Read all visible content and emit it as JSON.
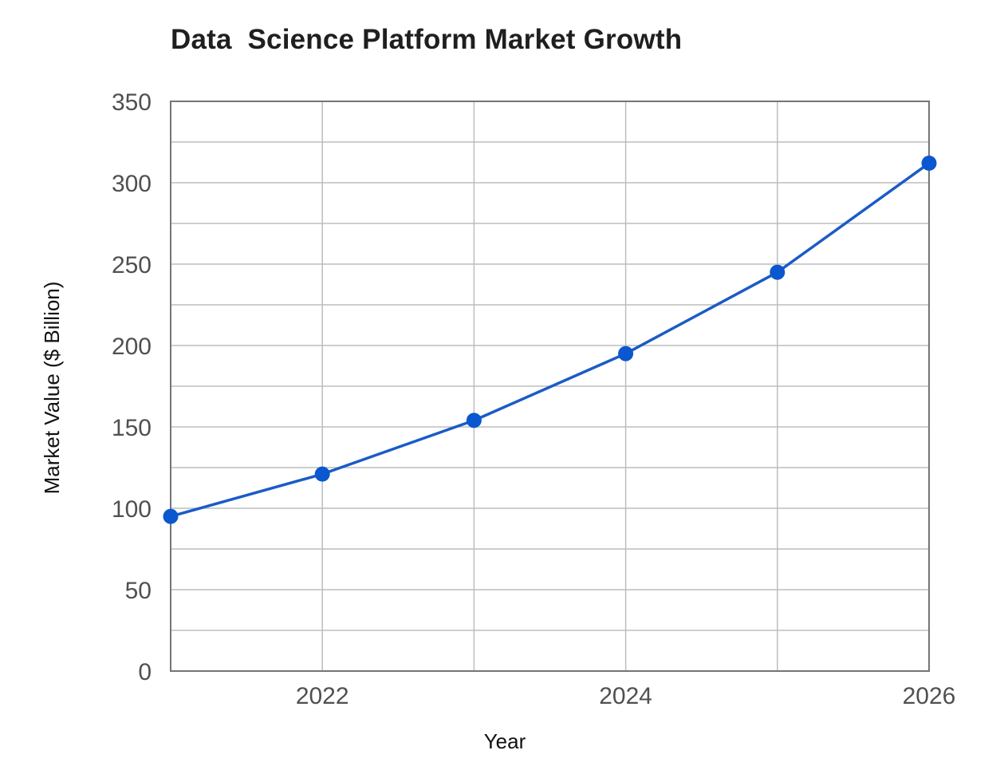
{
  "chart_data": {
    "type": "line",
    "title": "Data  Science Platform Market Growth",
    "xlabel": "Year",
    "ylabel": "Market Value ($ Billion)",
    "x": [
      2021,
      2022,
      2023,
      2024,
      2025,
      2026
    ],
    "series": [
      {
        "name": "Market Value",
        "values": [
          95,
          121,
          154,
          195,
          245,
          312
        ],
        "color": "#1a5bc6",
        "marker_color": "#0b57d0"
      }
    ],
    "xlim": [
      2021,
      2026
    ],
    "ylim": [
      0,
      350
    ],
    "x_ticks": [
      "2022",
      "2024",
      "2026"
    ],
    "y_ticks": [
      "0",
      "50",
      "100",
      "150",
      "200",
      "250",
      "300",
      "350"
    ],
    "grid": true,
    "grid_minor_y_step": 25,
    "grid_x_step": 1,
    "legend": null
  },
  "colors": {
    "line": "#1a5bc6",
    "marker": "#0b57d0",
    "grid": "#bdbdbd",
    "axis": "#757575",
    "title": "#1f1f1f",
    "tick_text": "#505050"
  }
}
